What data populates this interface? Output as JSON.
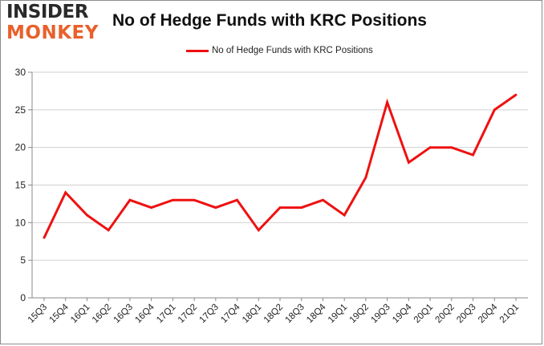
{
  "logo": {
    "line1": "INSIDER",
    "line2": "MONKEY"
  },
  "colors": {
    "series": "#ee1111",
    "grid": "#d0d0d0",
    "axis": "#888888",
    "logo_accent": "#e8602c"
  },
  "chart_data": {
    "type": "line",
    "title": "No of Hedge Funds with KRC Positions",
    "xlabel": "",
    "ylabel": "",
    "ylim": [
      0,
      30
    ],
    "yticks": [
      0,
      5,
      10,
      15,
      20,
      25,
      30
    ],
    "grid": true,
    "legend": "top-center",
    "categories": [
      "15Q3",
      "15Q4",
      "16Q1",
      "16Q2",
      "16Q3",
      "16Q4",
      "17Q1",
      "17Q2",
      "17Q3",
      "17Q4",
      "18Q1",
      "18Q2",
      "18Q3",
      "18Q4",
      "19Q1",
      "19Q2",
      "19Q3",
      "19Q4",
      "20Q1",
      "20Q2",
      "20Q3",
      "20Q4",
      "21Q1"
    ],
    "series": [
      {
        "name": "No of Hedge Funds with KRC Positions",
        "values": [
          8,
          14,
          11,
          9,
          13,
          12,
          13,
          13,
          12,
          13,
          9,
          12,
          12,
          13,
          11,
          16,
          26,
          18,
          20,
          20,
          19,
          25,
          27
        ]
      }
    ]
  }
}
